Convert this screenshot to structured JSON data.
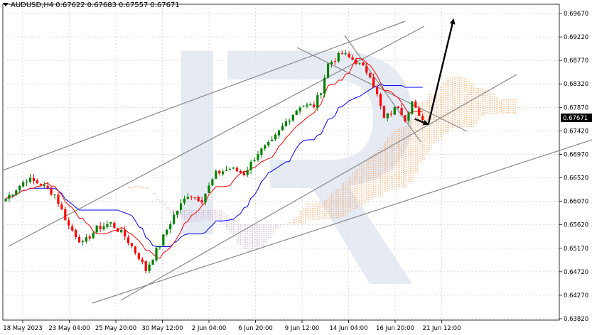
{
  "header": {
    "symbol": "AUDUSD,H4",
    "open": "0.67622",
    "high": "0.67683",
    "low": "0.67557",
    "close": "0.67671"
  },
  "colors": {
    "bull": "#008000",
    "bear": "#ff0000",
    "tenkan": "#ff0000",
    "kijun": "#0000ff",
    "cloud_orange": "#f4a460",
    "cloud_purple": "#c8a2c8",
    "trendline": "#888888",
    "arrow": "#000000",
    "price_marker_bg": "#000000",
    "watermark": "#dce3ef"
  },
  "chart_data": {
    "type": "candlestick",
    "y_axis": {
      "ticks": [
        "0.69670",
        "0.69220",
        "0.68770",
        "0.68320",
        "0.67870",
        "0.67420",
        "0.66970",
        "0.66520",
        "0.66070",
        "0.65620",
        "0.65170",
        "0.64720",
        "0.64270",
        "0.63820"
      ],
      "ylim": [
        0.6382,
        0.6967
      ],
      "current_price": "0.67671"
    },
    "x_axis": {
      "labels": [
        "18 May 2023",
        "23 May 04:00",
        "25 May 20:00",
        "30 May 12:00",
        "2 Jun 04:00",
        "6 Jun 20:00",
        "9 Jun 12:00",
        "14 Jun 04:00",
        "16 Jun 20:00",
        "21 Jun 12:00"
      ]
    },
    "price_path": [
      [
        0,
        0.6612
      ],
      [
        6,
        0.665
      ],
      [
        10,
        0.664
      ],
      [
        14,
        0.662
      ],
      [
        18,
        0.656
      ],
      [
        22,
        0.6525
      ],
      [
        26,
        0.6555
      ],
      [
        30,
        0.6565
      ],
      [
        34,
        0.654
      ],
      [
        38,
        0.65
      ],
      [
        40,
        0.6475
      ],
      [
        44,
        0.6525
      ],
      [
        48,
        0.658
      ],
      [
        52,
        0.662
      ],
      [
        56,
        0.661
      ],
      [
        60,
        0.666
      ],
      [
        64,
        0.667
      ],
      [
        68,
        0.666
      ],
      [
        72,
        0.67
      ],
      [
        76,
        0.672
      ],
      [
        80,
        0.676
      ],
      [
        84,
        0.679
      ],
      [
        88,
        0.679
      ],
      [
        90,
        0.682
      ],
      [
        92,
        0.687
      ],
      [
        96,
        0.689
      ],
      [
        100,
        0.6875
      ],
      [
        104,
        0.685
      ],
      [
        106,
        0.681
      ],
      [
        108,
        0.6765
      ],
      [
        112,
        0.679
      ],
      [
        114,
        0.6765
      ],
      [
        116,
        0.6798
      ],
      [
        118,
        0.6767
      ]
    ],
    "indicators": [
      "Ichimoku cloud",
      "Tenkan-sen",
      "Kijun-sen"
    ],
    "forecast": {
      "from_price": 0.6755,
      "to_price": 0.6955,
      "pullback_start_price": 0.6765
    }
  }
}
